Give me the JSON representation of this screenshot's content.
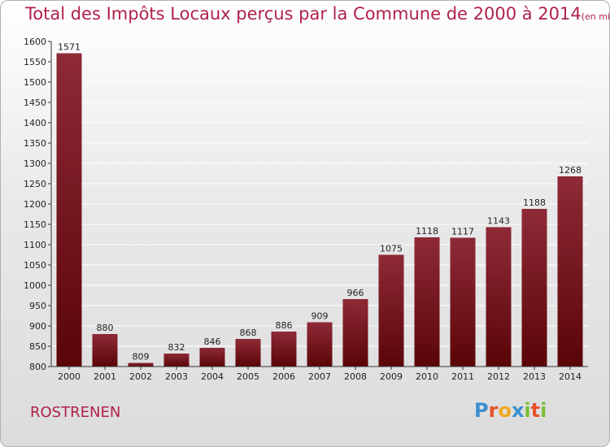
{
  "header": {
    "title": "Total des Impôts Locaux perçus par la Commune de 2000 à 2014",
    "unit": "(en milliers d'€)"
  },
  "footer": {
    "commune": "ROSTRENEN",
    "logo_letters": [
      "P",
      "r",
      "o",
      "x",
      "i",
      "t",
      "i"
    ],
    "logo_colors": [
      "#3a8fd0",
      "#e8522a",
      "#f0a81e",
      "#3a8fd0",
      "#7dbd35",
      "#e8522a",
      "#7dbd35"
    ]
  },
  "colors": {
    "bar_top": "#8e2a37",
    "bar_bottom": "#5a0508",
    "title": "#b0224a",
    "grid": "#ffffff",
    "text": "#222222"
  },
  "chart_data": {
    "type": "bar",
    "categories": [
      "2000",
      "2001",
      "2002",
      "2003",
      "2004",
      "2005",
      "2006",
      "2007",
      "2008",
      "2009",
      "2010",
      "2011",
      "2012",
      "2013",
      "2014"
    ],
    "values": [
      1571,
      880,
      809,
      832,
      846,
      868,
      886,
      909,
      966,
      1075,
      1118,
      1117,
      1143,
      1188,
      1268
    ],
    "ylim": [
      800,
      1600
    ],
    "ytick_step": 50,
    "grid": true
  }
}
